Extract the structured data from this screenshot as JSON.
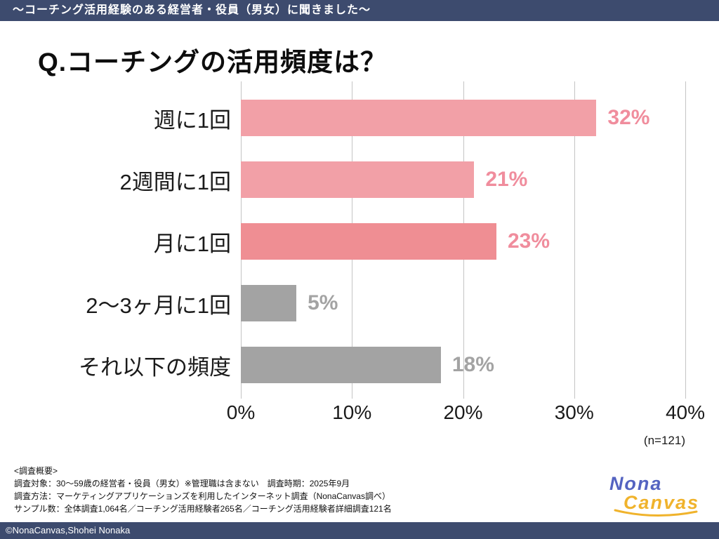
{
  "banner": {
    "text": "〜コーチング活用経験のある経営者・役員（男女）に聞きました〜"
  },
  "title": "Q.コーチングの活用頻度は？",
  "chart_data": {
    "type": "bar",
    "orientation": "horizontal",
    "title": "Q.コーチングの活用頻度は？",
    "categories": [
      "週に1回",
      "2週間に1回",
      "月に1回",
      "2〜3ヶ月に1回",
      "それ以下の頻度"
    ],
    "values": [
      32,
      21,
      23,
      5,
      18
    ],
    "value_labels": [
      "32%",
      "21%",
      "23%",
      "5%",
      "18%"
    ],
    "bar_colors": [
      "#f2a0a7",
      "#f2a0a7",
      "#ef8e93",
      "#a3a3a3",
      "#a3a3a3"
    ],
    "value_label_colors": [
      "#f08d9d",
      "#f08d9d",
      "#f08d9d",
      "#a3a3a3",
      "#a3a3a3"
    ],
    "xlim": [
      0,
      40
    ],
    "x_ticks": [
      "0%",
      "10%",
      "20%",
      "30%",
      "40%"
    ],
    "grid": "vertical",
    "sample_note": "(n=121)"
  },
  "survey": {
    "heading": "<調査概要>",
    "lines": [
      "調査対象：30〜59歳の経営者・役員（男女）※管理職は含まない　調査時期：2025年9月",
      "調査方法：マーケティングアプリケーションズを利用したインターネット調査（NonaCanvas調べ）",
      "サンプル数：全体調査1,064名／コーチング活用経験者265名／コーチング活用経験者詳細調査121名"
    ]
  },
  "logo": {
    "line1": "Nona",
    "line2": "Canvas"
  },
  "footer": {
    "text": "©NonaCanvas,Shohei Nonaka"
  },
  "colors": {
    "banner_bg": "#3d4b6e",
    "pink_bar": "#f2a0a7",
    "red_pink_bar": "#ef8e93",
    "gray_bar": "#a3a3a3",
    "gridline": "#c4c4c4",
    "logo_blue": "#5463c1",
    "logo_yellow": "#f0b32c"
  }
}
